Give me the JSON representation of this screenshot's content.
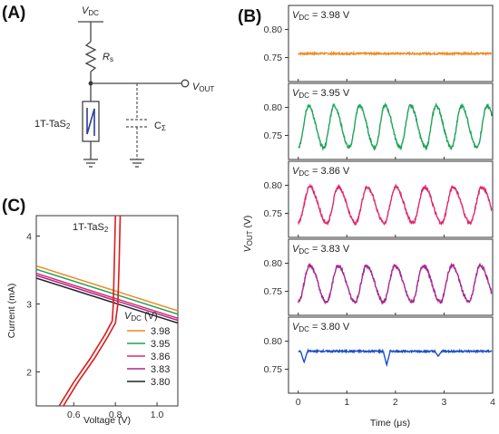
{
  "panel_labels": {
    "a": "(A)",
    "b": "(B)",
    "c": "(C)"
  },
  "circuit": {
    "vdc_label": "V",
    "vdc_sub": "DC",
    "rs_label": "R",
    "rs_sub": "s",
    "vout_label": "V",
    "vout_sub": "OUT",
    "device_label": "1T-TaS",
    "device_sub": "2",
    "cap_label": "C",
    "cap_sub": "Σ"
  },
  "colors": {
    "orange": "#f08a24",
    "green": "#1fa35a",
    "pink": "#e0286e",
    "purple": "#a5288f",
    "blue": "#1c4fc4",
    "red": "#dd1c1c",
    "device_blue": "#2a3d9c"
  },
  "chart_data": [
    {
      "id": "B",
      "type": "line",
      "xlabel": "Time (μs)",
      "ylabel_main": "V",
      "ylabel_sub": "OUT",
      "ylabel_unit": " (V)",
      "x_ticks": [
        "0",
        "1",
        "2",
        "3",
        "4"
      ],
      "xlim": [
        -0.2,
        4.0
      ],
      "y_ticks": [
        0.75,
        0.8
      ],
      "y_tick_labels": [
        "0.75",
        "0.80"
      ],
      "ylim": [
        0.72,
        0.83
      ],
      "subplots": [
        {
          "label_main": "V",
          "label_sub": "DC",
          "label_value": " = 3.98 V",
          "color": "orange",
          "mode": "flat",
          "base": 0.757,
          "noise": 0.0015
        },
        {
          "label_main": "V",
          "label_sub": "DC",
          "label_value": " = 3.95 V",
          "color": "green",
          "mode": "osc",
          "low": 0.728,
          "high": 0.803,
          "period": 0.525,
          "start": 0.0
        },
        {
          "label_main": "V",
          "label_sub": "DC",
          "label_value": " = 3.86 V",
          "color": "pink",
          "mode": "osc",
          "low": 0.733,
          "high": 0.797,
          "period": 0.59,
          "start": 0.0
        },
        {
          "label_main": "V",
          "label_sub": "DC",
          "label_value": " = 3.83 V",
          "color": "purple",
          "mode": "osc",
          "low": 0.731,
          "high": 0.796,
          "period": 0.585,
          "start": 0.0
        },
        {
          "label_main": "V",
          "label_sub": "DC",
          "label_value": " = 3.80 V",
          "color": "blue",
          "mode": "dips",
          "base": 0.782,
          "dips": [
            0.12,
            1.82,
            2.88
          ],
          "depths": [
            0.762,
            0.757,
            0.773
          ]
        }
      ]
    },
    {
      "id": "C",
      "type": "line",
      "xlabel": "Voltage (V)",
      "ylabel": "Current (mA)",
      "x_ticks": [
        0.6,
        0.8,
        1.0
      ],
      "x_tick_labels": [
        "0.6",
        "0.8",
        "1.0"
      ],
      "xlim": [
        0.42,
        1.1
      ],
      "y_ticks": [
        2,
        3,
        4
      ],
      "y_tick_labels": [
        "2",
        "3",
        "4"
      ],
      "ylim": [
        1.5,
        4.3
      ],
      "device_label": "1T-TaS",
      "device_sub": "2",
      "legend_title_main": "V",
      "legend_title_sub": "DC",
      "legend_title_unit": " (V)",
      "load_lines": [
        {
          "name": "3.98",
          "color": "orange",
          "y_start": 3.56,
          "y_end": 2.9
        },
        {
          "name": "3.95",
          "color": "green",
          "y_start": 3.51,
          "y_end": 2.85
        },
        {
          "name": "3.86",
          "color": "pink",
          "y_start": 3.45,
          "y_end": 2.79
        },
        {
          "name": "3.83",
          "color": "purple",
          "y_start": 3.42,
          "y_end": 2.76
        },
        {
          "name": "3.80",
          "color": "#222222",
          "y_start": 3.38,
          "y_end": 2.72
        }
      ],
      "iv_curves": [
        {
          "color": "red",
          "points": [
            [
              0.53,
              1.5
            ],
            [
              0.6,
              1.85
            ],
            [
              0.68,
              2.2
            ],
            [
              0.75,
              2.55
            ],
            [
              0.785,
              2.75
            ],
            [
              0.79,
              3.0
            ],
            [
              0.795,
              3.6
            ],
            [
              0.8,
              4.3
            ]
          ]
        },
        {
          "color": "red",
          "points": [
            [
              0.55,
              1.5
            ],
            [
              0.62,
              1.85
            ],
            [
              0.7,
              2.2
            ],
            [
              0.76,
              2.5
            ],
            [
              0.8,
              2.72
            ],
            [
              0.812,
              3.0
            ],
            [
              0.818,
              3.6
            ],
            [
              0.823,
              4.3
            ]
          ]
        }
      ]
    }
  ]
}
